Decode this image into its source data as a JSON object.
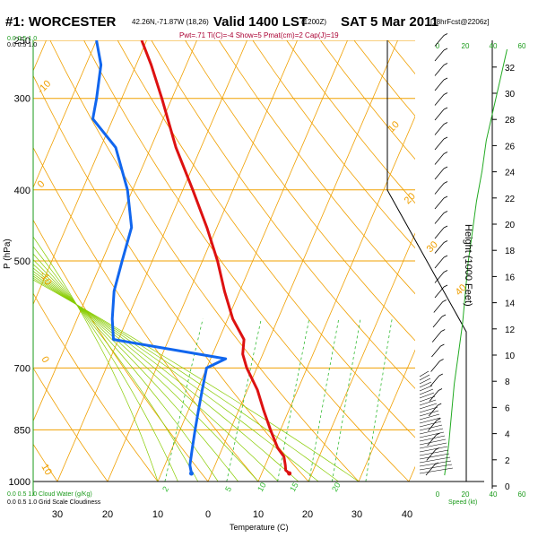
{
  "header": {
    "station": "#1: WORCESTER",
    "coords": "42.26N,-71.87W (18,26)",
    "valid": "Valid 1400 LST",
    "run": "(1200Z)",
    "date": "SAT 5 Mar 2011",
    "forecast": "[18hrFcst@2206z]",
    "subtitle": "Pwt=.71 Ti(C)=-4 Show=5 Pmat(cm)=2 Cap(J)=19"
  },
  "labels": {
    "x_axis": "Temperature (C)",
    "y_axis": "P (hPa)",
    "height_axis": "Height (1000 Feet)",
    "cloud_top_fracs": "0.0  0.5  1.0",
    "cloud_top_fracs2": "0.0  0.5  1.0",
    "cloud_bottom_left": "0.0   0.5  1.0 Cloud Water (g/Kg)",
    "cloud_bottom_left2": "0.0   0.5  1.0  Grid Scale Cloudiness",
    "speed_label": "Speed (kt)"
  },
  "colors": {
    "isotherm": "#f0a000",
    "dry_adiabat": "#f0a000",
    "moist_adiabat": "#88cc00",
    "mixing_ratio": "#33bb33",
    "temperature": "#dd1111",
    "dewpoint": "#1166ee",
    "wind_speed": "#22aa22",
    "axis_green": "#1a9a1a"
  },
  "chart_data": {
    "type": "skew-t",
    "title": "#1: WORCESTER Valid 1400 LST SAT 5 Mar 2011",
    "xlabel": "Temperature (C)",
    "ylabel": "P (hPa)",
    "y2label": "Height (1000 Feet)",
    "pressure_levels_labeled": [
      250,
      300,
      400,
      500,
      700,
      850,
      1000
    ],
    "temperature_ticks": [
      30,
      20,
      10,
      0,
      10,
      20,
      30,
      40
    ],
    "height_ticks": [
      0,
      2,
      4,
      6,
      8,
      10,
      12,
      14,
      16,
      18,
      20,
      22,
      24,
      26,
      28,
      30,
      32
    ],
    "isotherm_labels": [
      "-30",
      "-10",
      "0",
      "10",
      "20",
      "30",
      "40"
    ],
    "theta_labels": [
      "-10",
      "0",
      "10",
      "20",
      "30"
    ],
    "mixing_ratio_labels": [
      "2",
      "5",
      "10",
      "15",
      "20"
    ],
    "speed_ticks": [
      "0",
      "20",
      "40",
      "60"
    ],
    "temperature_series": {
      "name": "Temperature",
      "pressure": [
        975,
        965,
        950,
        925,
        900,
        850,
        800,
        750,
        700,
        670,
        640,
        600,
        550,
        500,
        450,
        400,
        350,
        300,
        270,
        250
      ],
      "temp": [
        15.5,
        14.5,
        14,
        13,
        11,
        8,
        5,
        2,
        -2,
        -4,
        -5,
        -9,
        -13,
        -17,
        -22,
        -28,
        -35,
        -42,
        -47,
        -51
      ]
    },
    "dewpoint_series": {
      "name": "Dewpoint",
      "pressure": [
        975,
        950,
        900,
        850,
        800,
        750,
        700,
        680,
        640,
        600,
        550,
        500,
        450,
        400,
        350,
        320,
        300,
        270,
        250
      ],
      "dewp": [
        -4,
        -5,
        -6,
        -7,
        -8,
        -9,
        -10,
        -7,
        -31,
        -33,
        -35,
        -36,
        -37,
        -41,
        -47,
        -54,
        -55,
        -57,
        -60
      ]
    },
    "surface_point": {
      "pressure": 975,
      "temp": 15.5,
      "dewp": -4
    },
    "wind_speed_profile_kt": [
      5,
      8,
      10,
      12,
      15,
      18,
      20,
      22,
      25,
      28,
      32,
      35,
      40,
      45,
      50
    ]
  }
}
